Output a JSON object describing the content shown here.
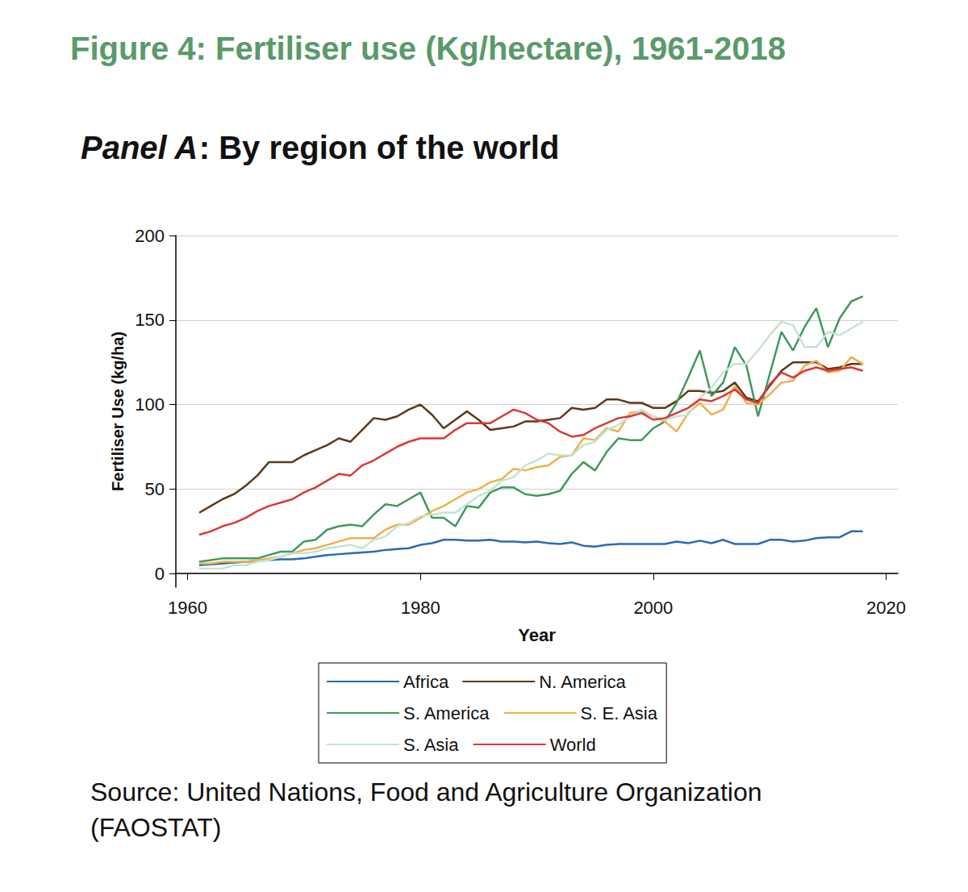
{
  "chart_data": {
    "type": "line",
    "title": "Figure 4: Fertiliser use (Kg/hectare), 1961-2018",
    "subtitle": "Panel A: By region of the world",
    "source": "Source: United Nations, Food and Agriculture Organization (FAOSTAT)",
    "x_label": "Year",
    "y_label": "Fertiliser Use (kg/ha)",
    "x": [
      1961,
      1962,
      1963,
      1964,
      1965,
      1966,
      1967,
      1968,
      1969,
      1970,
      1971,
      1972,
      1973,
      1974,
      1975,
      1976,
      1977,
      1978,
      1979,
      1980,
      1981,
      1982,
      1983,
      1984,
      1985,
      1986,
      1987,
      1988,
      1989,
      1990,
      1991,
      1992,
      1993,
      1994,
      1995,
      1996,
      1997,
      1998,
      1999,
      2000,
      2001,
      2002,
      2003,
      2004,
      2005,
      2006,
      2007,
      2008,
      2009,
      2010,
      2011,
      2012,
      2013,
      2014,
      2015,
      2016,
      2017,
      2018
    ],
    "xlim": [
      1959,
      2021
    ],
    "xticks": [
      1960,
      1980,
      2000,
      2020
    ],
    "ylim": [
      -8,
      200
    ],
    "yticks": [
      0,
      50,
      100,
      150,
      200
    ],
    "grid": true,
    "legend": "bottom",
    "series": [
      {
        "name": "Africa",
        "color": "#2a6ab7",
        "values": [
          5,
          5.5,
          6,
          6.5,
          7,
          7.5,
          8,
          8.5,
          8.5,
          9,
          10,
          11,
          11.5,
          12,
          12.5,
          13,
          14,
          14.5,
          15,
          17,
          18,
          20,
          20,
          19.5,
          19.5,
          20,
          19,
          19,
          18.5,
          19,
          18,
          17.5,
          18.5,
          16.5,
          16,
          17,
          17.5,
          17.5,
          17.5,
          17.5,
          17.5,
          19,
          18,
          19.5,
          18,
          20,
          17.5,
          17.5,
          17.5,
          20,
          20,
          19,
          19.5,
          21,
          21.5,
          21.5,
          25,
          25
        ]
      },
      {
        "name": "N. America",
        "color": "#5b3a1a",
        "values": [
          36,
          40,
          44,
          47,
          52,
          58,
          66,
          66,
          66,
          70,
          73,
          76,
          80,
          78,
          85,
          92,
          91,
          93,
          97,
          100,
          94,
          86,
          91,
          96,
          91,
          85,
          86,
          87,
          90,
          90,
          91,
          92,
          98,
          97,
          98,
          103,
          103,
          101,
          101,
          98,
          98,
          102,
          108,
          108,
          107,
          108,
          113,
          104,
          102,
          111,
          120,
          125,
          125,
          125,
          121,
          122,
          124,
          124
        ]
      },
      {
        "name": "S. America",
        "color": "#3f9a5f",
        "values": [
          7,
          8,
          9,
          9,
          9,
          9,
          11,
          13,
          13,
          19,
          20,
          26,
          28,
          29,
          28,
          35,
          41,
          40,
          44,
          48,
          33,
          33,
          28,
          40,
          39,
          48,
          51,
          51,
          47,
          46,
          47,
          49,
          59,
          66,
          61,
          72,
          80,
          79,
          79,
          86,
          90,
          101,
          116,
          132,
          105,
          113,
          134,
          123,
          93,
          118,
          143,
          132,
          146,
          157,
          134,
          151,
          161,
          164
        ]
      },
      {
        "name": "S. E. Asia",
        "color": "#f0b04a",
        "values": [
          6,
          6,
          7,
          7,
          7,
          8,
          9,
          10,
          12,
          14,
          15,
          17,
          19,
          21,
          21,
          21,
          26,
          29,
          29,
          33,
          37,
          40,
          44,
          48,
          50,
          54,
          56,
          62,
          61,
          63,
          64,
          69,
          70,
          80,
          79,
          86,
          84,
          95,
          96,
          93,
          90,
          84,
          95,
          101,
          94,
          97,
          111,
          101,
          100,
          106,
          113,
          114,
          123,
          126,
          119,
          120,
          128,
          124
        ]
      },
      {
        "name": "S. Asia",
        "color": "#c5e3d3",
        "values": [
          3,
          3,
          3,
          5,
          5,
          7,
          8,
          10,
          12,
          12,
          13,
          15,
          16,
          17,
          15,
          20,
          22,
          28,
          30,
          34,
          35,
          36,
          36,
          41,
          46,
          49,
          55,
          57,
          64,
          67,
          71,
          70,
          70,
          76,
          78,
          85,
          88,
          93,
          97,
          93,
          91,
          93,
          94,
          104,
          110,
          119,
          124,
          124,
          132,
          141,
          149,
          147,
          134,
          134,
          143,
          141,
          145,
          149
        ]
      },
      {
        "name": "World",
        "color": "#d93838",
        "values": [
          23,
          25,
          28,
          30,
          33,
          37,
          40,
          42,
          44,
          48,
          51,
          55,
          59,
          58,
          64,
          67,
          71,
          75,
          78,
          80,
          80,
          80,
          85,
          89,
          89,
          89,
          93,
          97,
          95,
          91,
          89,
          84,
          81,
          82,
          86,
          89,
          92,
          93,
          95,
          91,
          92,
          95,
          98,
          103,
          102,
          105,
          109,
          103,
          101,
          112,
          119,
          116,
          120,
          122,
          120,
          121,
          122,
          120
        ]
      }
    ]
  }
}
